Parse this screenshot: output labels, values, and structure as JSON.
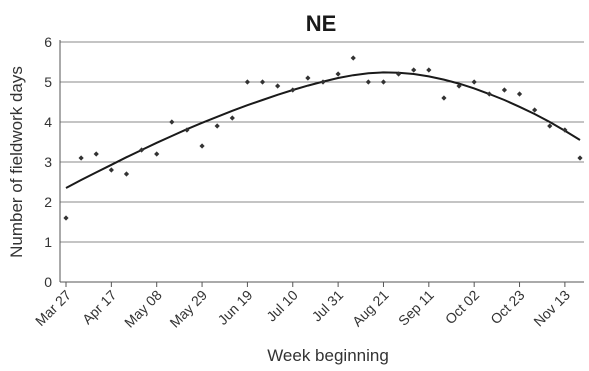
{
  "chart_data": {
    "type": "scatter",
    "title": "NE",
    "xlabel": "Week beginning",
    "ylabel": "Number of fieldwork days",
    "ylim": [
      0,
      6
    ],
    "yticks": [
      0,
      1,
      2,
      3,
      4,
      5,
      6
    ],
    "xtick_labels": [
      "Mar 27",
      "Apr 17",
      "May 08",
      "May 29",
      "Jun 19",
      "Jul 10",
      "Jul 31",
      "Aug 21",
      "Sep 11",
      "Oct 02",
      "Oct 23",
      "Nov 13"
    ],
    "x_weeks": [
      "Mar 27",
      "Apr 03",
      "Apr 10",
      "Apr 17",
      "Apr 24",
      "May 01",
      "May 08",
      "May 15",
      "May 22",
      "May 29",
      "Jun 05",
      "Jun 12",
      "Jun 19",
      "Jun 26",
      "Jul 03",
      "Jul 10",
      "Jul 17",
      "Jul 24",
      "Jul 31",
      "Aug 07",
      "Aug 14",
      "Aug 21",
      "Aug 28",
      "Sep 04",
      "Sep 11",
      "Sep 18",
      "Sep 25",
      "Oct 02",
      "Oct 09",
      "Oct 16",
      "Oct 23",
      "Oct 30",
      "Nov 06",
      "Nov 13",
      "Nov 20"
    ],
    "values": [
      1.6,
      3.1,
      3.2,
      2.8,
      2.7,
      3.3,
      3.2,
      4.0,
      3.8,
      3.4,
      3.9,
      4.1,
      5.0,
      5.0,
      4.9,
      4.8,
      5.1,
      5.0,
      5.2,
      5.6,
      5.0,
      5.0,
      5.2,
      5.3,
      5.3,
      4.6,
      4.9,
      5.0,
      4.7,
      4.8,
      4.7,
      4.3,
      3.9,
      3.8,
      3.1
    ],
    "trendline": {
      "type": "polynomial",
      "values": [
        2.35,
        2.55,
        2.74,
        2.93,
        3.12,
        3.3,
        3.48,
        3.65,
        3.82,
        3.98,
        4.13,
        4.28,
        4.42,
        4.55,
        4.68,
        4.8,
        4.91,
        5.01,
        5.1,
        5.17,
        5.22,
        5.24,
        5.23,
        5.2,
        5.14,
        5.06,
        4.96,
        4.84,
        4.7,
        4.55,
        4.38,
        4.2,
        4.0,
        3.78,
        3.55
      ]
    },
    "grid": true,
    "legend": "none"
  }
}
